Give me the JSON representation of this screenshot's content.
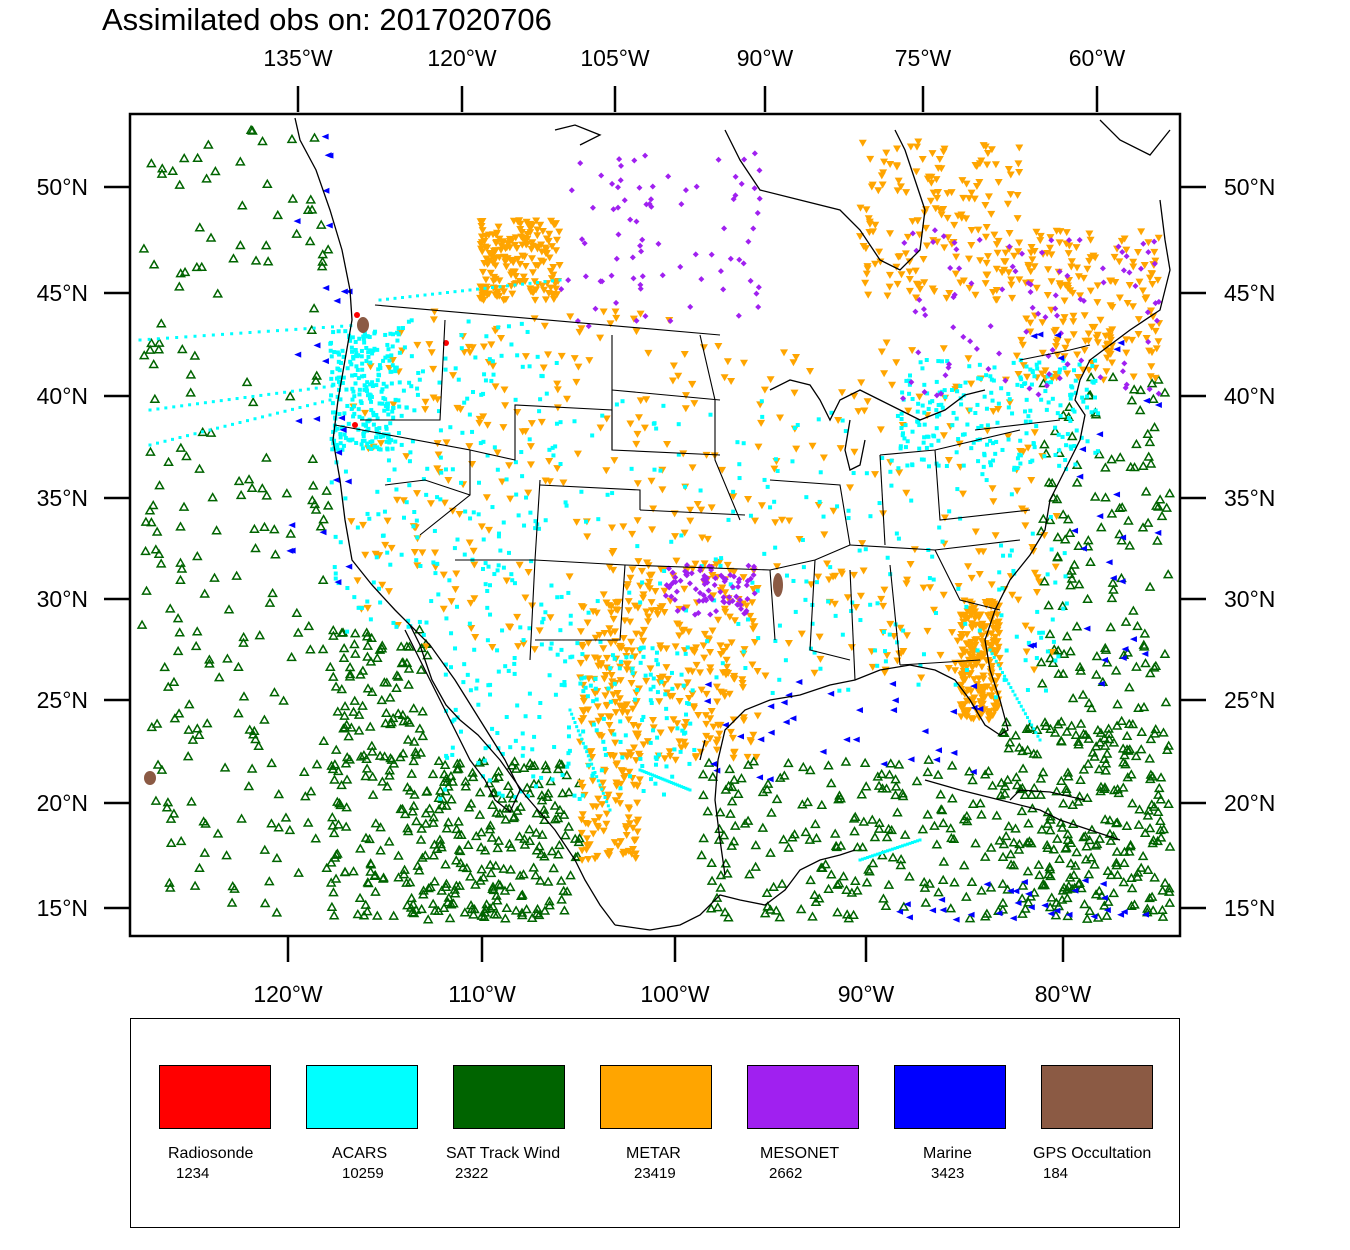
{
  "title": "Assimilated obs on: 2017020706",
  "top_axis": [
    "135°W",
    "120°W",
    "105°W",
    "90°W",
    "75°W",
    "60°W"
  ],
  "bottom_axis": [
    "120°W",
    "110°W",
    "100°W",
    "90°W",
    "80°W"
  ],
  "lat_axis": [
    "50°N",
    "45°N",
    "40°N",
    "35°N",
    "30°N",
    "25°N",
    "20°N",
    "15°N"
  ],
  "legend": [
    {
      "name": "Radiosonde",
      "count": "1234",
      "color": "#ff0000"
    },
    {
      "name": "ACARS",
      "count": "10259",
      "color": "#00ffff"
    },
    {
      "name": "SAT Track Wind",
      "count": "2322",
      "color": "#006400"
    },
    {
      "name": "METAR",
      "count": "23419",
      "color": "#ffa500"
    },
    {
      "name": "MESONET",
      "count": "2662",
      "color": "#a020f0"
    },
    {
      "name": "Marine",
      "count": "3423",
      "color": "#0000ff"
    },
    {
      "name": "GPS Occultation",
      "count": "184",
      "color": "#8b5a44"
    }
  ]
}
